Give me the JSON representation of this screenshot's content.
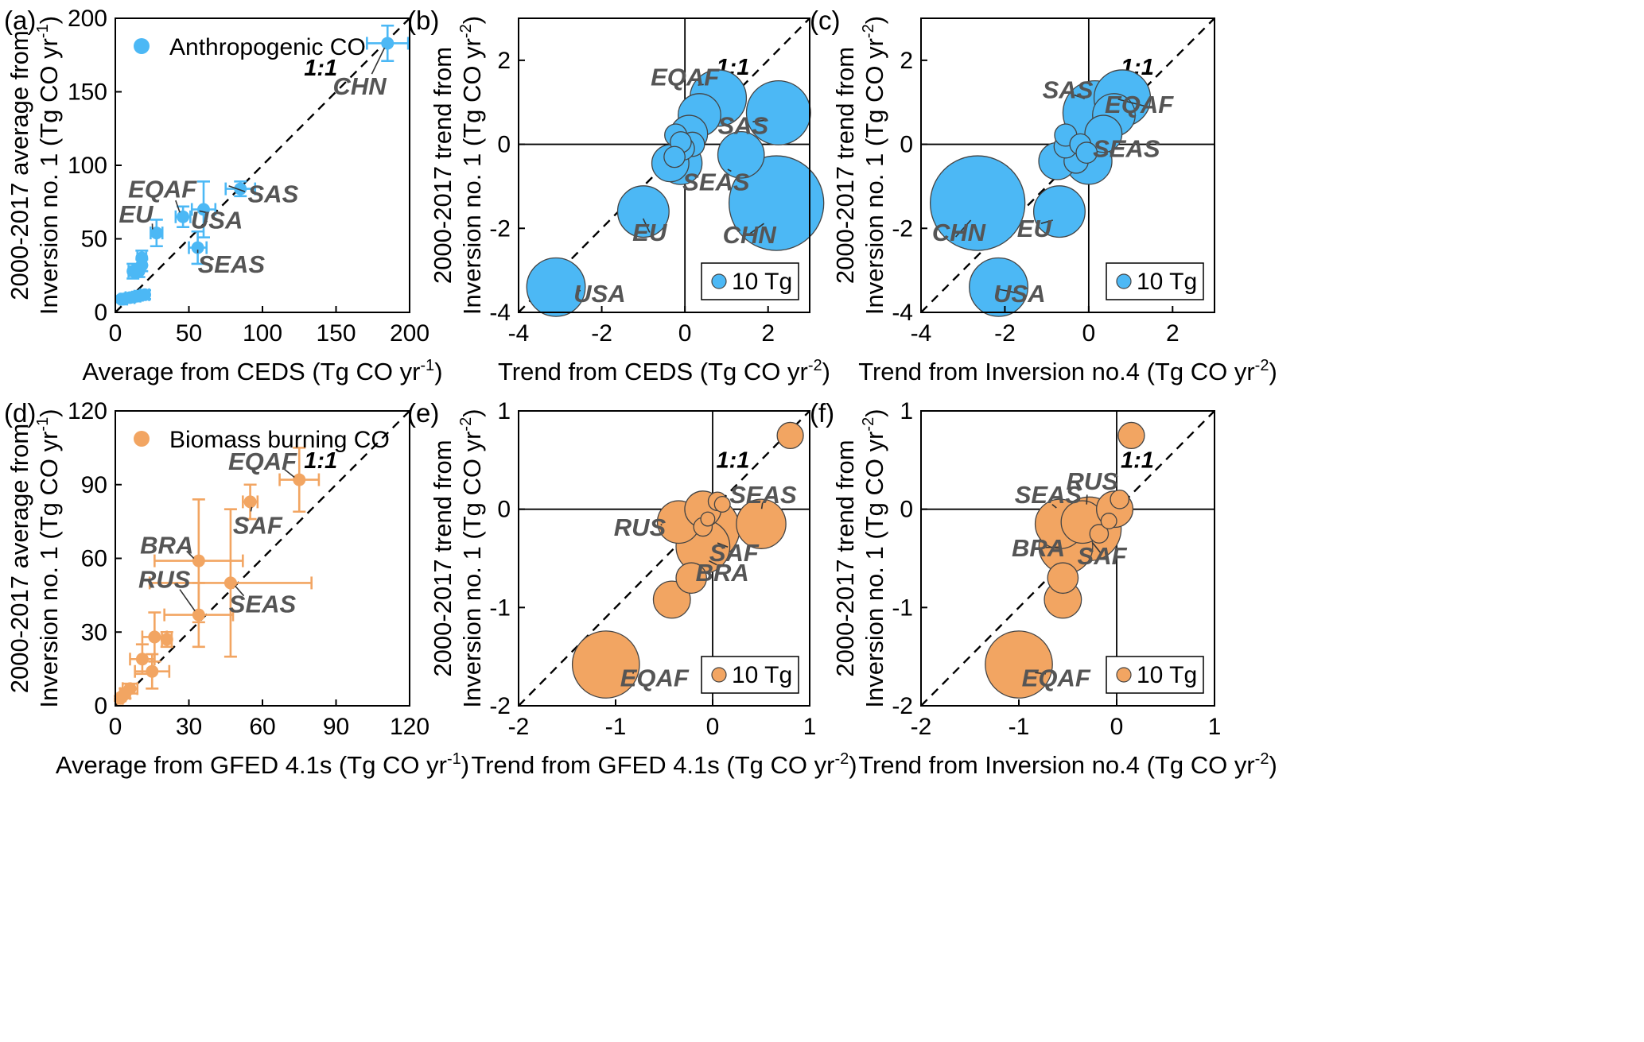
{
  "colors": {
    "anthropogenic": "#4cb8f5",
    "biomass": "#f2a562",
    "leader": "#333333",
    "label": "#555555"
  },
  "one_to_one_label": "1:1",
  "chart_data": [
    {
      "panel": "(a)",
      "type": "scatter",
      "xlabel": "Average from CEDS (Tg CO yr",
      "xlabel_sup": "-1",
      "xlabel_end": ")",
      "ylabel_line1": "2000-2017 average from",
      "ylabel_line2": "Inversion no. 1 (Tg CO yr",
      "ylabel_sup": "-1",
      "ylabel_end": ")",
      "xlim": [
        0,
        200
      ],
      "ylim": [
        0,
        200
      ],
      "xticks": [
        0,
        50,
        100,
        150,
        200
      ],
      "yticks": [
        0,
        50,
        100,
        150,
        200
      ],
      "legend": {
        "text": "Anthropogenic CO",
        "position": "top-left"
      },
      "color_key": "anthropogenic",
      "points": [
        {
          "x": 185,
          "y": 183,
          "xerr": 14,
          "yerr": 12,
          "label": "CHN"
        },
        {
          "x": 85,
          "y": 84,
          "xerr": 10,
          "yerr": 5,
          "label": "SAS"
        },
        {
          "x": 60,
          "y": 70,
          "xerr": 8,
          "yerr": 19,
          "label": "USA"
        },
        {
          "x": 46,
          "y": 65,
          "xerr": 5,
          "yerr": 7,
          "label": "EQAF"
        },
        {
          "x": 28,
          "y": 54,
          "xerr": 4,
          "yerr": 9,
          "label": "EU"
        },
        {
          "x": 56,
          "y": 44,
          "xerr": 6,
          "yerr": 11,
          "label": "SEAS"
        },
        {
          "x": 18,
          "y": 37,
          "xerr": 3,
          "yerr": 5
        },
        {
          "x": 18,
          "y": 32,
          "xerr": 2,
          "yerr": 4
        },
        {
          "x": 12,
          "y": 28,
          "xerr": 3,
          "yerr": 5
        },
        {
          "x": 16,
          "y": 28,
          "xerr": 2,
          "yerr": 4
        },
        {
          "x": 20,
          "y": 12,
          "xerr": 3,
          "yerr": 3
        },
        {
          "x": 15,
          "y": 11,
          "xerr": 2,
          "yerr": 3
        },
        {
          "x": 10,
          "y": 10,
          "xerr": 3,
          "yerr": 3
        },
        {
          "x": 6,
          "y": 9,
          "xerr": 2,
          "yerr": 2
        },
        {
          "x": 4,
          "y": 9,
          "xerr": 1,
          "yerr": 2
        }
      ],
      "labels": [
        {
          "text": "CHN",
          "x": 166,
          "y": 148,
          "anchor": "middle"
        },
        {
          "text": "SAS",
          "x": 90,
          "y": 75,
          "anchor": "start"
        },
        {
          "text": "USA",
          "x": 69,
          "y": 57,
          "anchor": "middle"
        },
        {
          "text": "EQAF",
          "x": 32,
          "y": 78,
          "anchor": "middle"
        },
        {
          "text": "EU",
          "x": 14,
          "y": 61,
          "anchor": "middle"
        },
        {
          "text": "SEAS",
          "x": 56,
          "y": 27,
          "anchor": "start"
        }
      ]
    },
    {
      "panel": "(b)",
      "type": "scatter",
      "xlabel": "Trend from CEDS (Tg CO yr",
      "xlabel_sup": "-2",
      "xlabel_end": ")",
      "ylabel_line1": "2000-2017 trend from",
      "ylabel_line2": "Inversion no. 1 (Tg CO yr",
      "ylabel_sup": "-2",
      "ylabel_end": ")",
      "xlim": [
        -4,
        3
      ],
      "ylim": [
        -4,
        3
      ],
      "xticks": [
        -4,
        -2,
        0,
        2
      ],
      "yticks": [
        -4,
        -2,
        0,
        2
      ],
      "legend": {
        "text": "10 Tg",
        "position": "bottom-right"
      },
      "color_key": "anthropogenic",
      "points": [
        {
          "x": 2.2,
          "y": -1.4,
          "size": 183,
          "label": "CHN"
        },
        {
          "x": 2.25,
          "y": 0.75,
          "size": 84,
          "label": "SAS"
        },
        {
          "x": -3.1,
          "y": -3.4,
          "size": 70,
          "label": "USA"
        },
        {
          "x": 0.8,
          "y": 1.1,
          "size": 65,
          "label": "EQAF"
        },
        {
          "x": -1.0,
          "y": -1.6,
          "size": 54,
          "label": "EU"
        },
        {
          "x": 1.35,
          "y": -0.25,
          "size": 44,
          "label": "SEAS"
        },
        {
          "x": 0.35,
          "y": 0.7,
          "size": 37
        },
        {
          "x": -0.1,
          "y": -0.45,
          "size": 37
        },
        {
          "x": 0.1,
          "y": 0.25,
          "size": 28
        },
        {
          "x": -0.35,
          "y": -0.45,
          "size": 28
        },
        {
          "x": 0.18,
          "y": 0.0,
          "size": 12
        },
        {
          "x": -0.22,
          "y": 0.22,
          "size": 10
        },
        {
          "x": -0.05,
          "y": -0.1,
          "size": 11
        },
        {
          "x": -0.1,
          "y": 0.05,
          "size": 9
        },
        {
          "x": -0.25,
          "y": -0.3,
          "size": 9
        }
      ],
      "labels": [
        {
          "text": "CHN",
          "x": 1.55,
          "y": -2.35,
          "anchor": "middle"
        },
        {
          "text": "SAS",
          "x": 1.4,
          "y": 0.25,
          "anchor": "middle"
        },
        {
          "text": "USA",
          "x": -2.05,
          "y": -3.75,
          "anchor": "middle"
        },
        {
          "text": "EQAF",
          "x": 0.0,
          "y": 1.4,
          "anchor": "middle"
        },
        {
          "text": "EU",
          "x": -0.85,
          "y": -2.3,
          "anchor": "middle"
        },
        {
          "text": "SEAS",
          "x": 0.75,
          "y": -1.1,
          "anchor": "middle"
        }
      ]
    },
    {
      "panel": "(c)",
      "type": "scatter",
      "xlabel": "Trend from Inversion no.4 (Tg CO yr",
      "xlabel_sup": "-2",
      "xlabel_end": ")",
      "ylabel_line1": "2000-2017 trend from",
      "ylabel_line2": "Inversion no. 1 (Tg CO yr",
      "ylabel_sup": "-2",
      "ylabel_end": ")",
      "xlim": [
        -4,
        3
      ],
      "ylim": [
        -4,
        3
      ],
      "xticks": [
        -4,
        -2,
        0,
        2
      ],
      "yticks": [
        -4,
        -2,
        0,
        2
      ],
      "legend": {
        "text": "10 Tg",
        "position": "bottom-right"
      },
      "color_key": "anthropogenic",
      "points": [
        {
          "x": -2.65,
          "y": -1.4,
          "size": 183,
          "label": "CHN"
        },
        {
          "x": 0.15,
          "y": 0.75,
          "size": 84,
          "label": "SAS"
        },
        {
          "x": -2.15,
          "y": -3.4,
          "size": 70,
          "label": "USA"
        },
        {
          "x": 0.8,
          "y": 1.1,
          "size": 65,
          "label": "EQAF"
        },
        {
          "x": -0.7,
          "y": -1.6,
          "size": 54,
          "label": "EU"
        },
        {
          "x": 0.0,
          "y": -0.4,
          "size": 44,
          "label": "SEAS"
        },
        {
          "x": 0.6,
          "y": 0.7,
          "size": 37
        },
        {
          "x": -0.75,
          "y": -0.4,
          "size": 28
        },
        {
          "x": 0.35,
          "y": 0.25,
          "size": 28
        },
        {
          "x": -0.3,
          "y": -0.4,
          "size": 12
        },
        {
          "x": -0.55,
          "y": 0.22,
          "size": 10
        },
        {
          "x": -0.55,
          "y": -0.05,
          "size": 11
        },
        {
          "x": -0.2,
          "y": 0.0,
          "size": 9
        },
        {
          "x": -0.05,
          "y": -0.2,
          "size": 9
        }
      ],
      "labels": [
        {
          "text": "CHN",
          "x": -3.1,
          "y": -2.3,
          "anchor": "middle"
        },
        {
          "text": "SAS",
          "x": -0.5,
          "y": 1.1,
          "anchor": "middle"
        },
        {
          "text": "USA",
          "x": -1.65,
          "y": -3.75,
          "anchor": "middle"
        },
        {
          "text": "EQAF",
          "x": 1.2,
          "y": 0.75,
          "anchor": "middle"
        },
        {
          "text": "EU",
          "x": -1.3,
          "y": -2.2,
          "anchor": "middle"
        },
        {
          "text": "SEAS",
          "x": 0.9,
          "y": -0.3,
          "anchor": "middle"
        }
      ]
    },
    {
      "panel": "(d)",
      "type": "scatter",
      "xlabel": "Average from GFED 4.1s (Tg CO yr",
      "xlabel_sup": "-1",
      "xlabel_end": ")",
      "ylabel_line1": "2000-2017 average from",
      "ylabel_line2": "Inversion no. 1 (Tg CO yr",
      "ylabel_sup": "-1",
      "ylabel_end": ")",
      "xlim": [
        0,
        120
      ],
      "ylim": [
        0,
        120
      ],
      "xticks": [
        0,
        30,
        60,
        90,
        120
      ],
      "yticks": [
        0,
        30,
        60,
        90,
        120
      ],
      "legend": {
        "text": "Biomass burning CO",
        "position": "top-left"
      },
      "color_key": "biomass",
      "points": [
        {
          "x": 75,
          "y": 92,
          "xerr": 8,
          "yerr": 13,
          "label": "EQAF"
        },
        {
          "x": 55,
          "y": 83,
          "xerr": 3,
          "yerr": 7,
          "label": "SAF"
        },
        {
          "x": 34,
          "y": 59,
          "xerr": 18,
          "yerr": 25,
          "label": "BRA"
        },
        {
          "x": 47,
          "y": 50,
          "xerr": 33,
          "yerr": 30,
          "label": "SEAS"
        },
        {
          "x": 34,
          "y": 37,
          "xerr": 14,
          "yerr": 13,
          "label": "RUS"
        },
        {
          "x": 16,
          "y": 28,
          "xerr": 5,
          "yerr": 10
        },
        {
          "x": 21,
          "y": 27,
          "xerr": 2,
          "yerr": 3
        },
        {
          "x": 11,
          "y": 19,
          "xerr": 5,
          "yerr": 6
        },
        {
          "x": 15,
          "y": 14,
          "xerr": 7,
          "yerr": 7
        },
        {
          "x": 6,
          "y": 7,
          "xerr": 3,
          "yerr": 2
        },
        {
          "x": 4,
          "y": 5,
          "xerr": 2,
          "yerr": 2
        },
        {
          "x": 3,
          "y": 4,
          "xerr": 1,
          "yerr": 1
        },
        {
          "x": 2,
          "y": 3,
          "xerr": 1,
          "yerr": 1
        }
      ],
      "labels": [
        {
          "text": "EQAF",
          "x": 60,
          "y": 96,
          "anchor": "middle"
        },
        {
          "text": "SAF",
          "x": 58,
          "y": 70,
          "anchor": "middle"
        },
        {
          "text": "BRA",
          "x": 21,
          "y": 62,
          "anchor": "middle"
        },
        {
          "text": "SEAS",
          "x": 60,
          "y": 38,
          "anchor": "middle"
        },
        {
          "text": "RUS",
          "x": 20,
          "y": 48,
          "anchor": "middle"
        }
      ]
    },
    {
      "panel": "(e)",
      "type": "scatter",
      "xlabel": "Trend from GFED 4.1s (Tg CO yr",
      "xlabel_sup": "-2",
      "xlabel_end": ")",
      "ylabel_line1": "2000-2017 trend from",
      "ylabel_line2": "Inversion no. 1 (Tg CO yr",
      "ylabel_sup": "-2",
      "ylabel_end": ")",
      "xlim": [
        -2,
        1
      ],
      "ylim": [
        -2,
        1
      ],
      "xticks": [
        -2,
        -1,
        0,
        1
      ],
      "yticks": [
        -2,
        -1,
        0,
        1
      ],
      "legend": {
        "text": "10 Tg",
        "position": "bottom-right"
      },
      "color_key": "biomass",
      "points": [
        {
          "x": -1.1,
          "y": -1.58,
          "size": 92,
          "label": "EQAF"
        },
        {
          "x": 0.5,
          "y": -0.15,
          "size": 50,
          "label": "SEAS"
        },
        {
          "x": -0.35,
          "y": -0.13,
          "size": 37,
          "label": "RUS"
        },
        {
          "x": -0.05,
          "y": -0.2,
          "size": 83,
          "label": "SAF"
        },
        {
          "x": -0.1,
          "y": -0.38,
          "size": 59,
          "label": "BRA"
        },
        {
          "x": -0.42,
          "y": -0.92,
          "size": 28
        },
        {
          "x": -0.22,
          "y": -0.7,
          "size": 19
        },
        {
          "x": -0.1,
          "y": 0.0,
          "size": 27
        },
        {
          "x": 0.8,
          "y": 0.75,
          "size": 14
        },
        {
          "x": 0.05,
          "y": 0.08,
          "size": 7
        },
        {
          "x": 0.1,
          "y": 0.05,
          "size": 5
        },
        {
          "x": -0.1,
          "y": -0.18,
          "size": 7
        },
        {
          "x": -0.05,
          "y": -0.1,
          "size": 4
        }
      ],
      "labels": [
        {
          "text": "EQAF",
          "x": -0.6,
          "y": -1.8,
          "anchor": "middle"
        },
        {
          "text": "SEAS",
          "x": 0.52,
          "y": 0.06,
          "anchor": "middle"
        },
        {
          "text": "RUS",
          "x": -0.75,
          "y": -0.27,
          "anchor": "middle"
        },
        {
          "text": "SAF",
          "x": 0.22,
          "y": -0.53,
          "anchor": "middle"
        },
        {
          "text": "BRA",
          "x": 0.1,
          "y": -0.73,
          "anchor": "middle"
        }
      ]
    },
    {
      "panel": "(f)",
      "type": "scatter",
      "xlabel": "Trend from Inversion no.4 (Tg CO yr",
      "xlabel_sup": "-2",
      "xlabel_end": ")",
      "ylabel_line1": "2000-2017 trend from",
      "ylabel_line2": "Inversion no. 1 (Tg CO yr",
      "ylabel_sup": "-2",
      "ylabel_end": ")",
      "xlim": [
        -2,
        1
      ],
      "ylim": [
        -2,
        1
      ],
      "xticks": [
        -2,
        -1,
        0,
        1
      ],
      "yticks": [
        -2,
        -1,
        0,
        1
      ],
      "legend": {
        "text": "10 Tg",
        "position": "bottom-right"
      },
      "color_key": "biomass",
      "points": [
        {
          "x": -1.0,
          "y": -1.58,
          "size": 92,
          "label": "EQAF"
        },
        {
          "x": -0.58,
          "y": -0.15,
          "size": 50,
          "label": "SEAS"
        },
        {
          "x": -0.35,
          "y": -0.13,
          "size": 37,
          "label": "RUS"
        },
        {
          "x": -0.28,
          "y": -0.2,
          "size": 83,
          "label": "SAF"
        },
        {
          "x": -0.52,
          "y": -0.38,
          "size": 59,
          "label": "BRA"
        },
        {
          "x": -0.55,
          "y": -0.92,
          "size": 28
        },
        {
          "x": -0.55,
          "y": -0.7,
          "size": 19
        },
        {
          "x": -0.02,
          "y": 0.0,
          "size": 27
        },
        {
          "x": 0.15,
          "y": 0.75,
          "size": 14
        },
        {
          "x": 0.03,
          "y": 0.1,
          "size": 7
        },
        {
          "x": -0.18,
          "y": -0.25,
          "size": 7
        },
        {
          "x": -0.08,
          "y": -0.12,
          "size": 5
        }
      ],
      "labels": [
        {
          "text": "EQAF",
          "x": -0.62,
          "y": -1.8,
          "anchor": "middle"
        },
        {
          "text": "SEAS",
          "x": -0.7,
          "y": 0.06,
          "anchor": "middle"
        },
        {
          "text": "RUS",
          "x": -0.25,
          "y": 0.2,
          "anchor": "middle"
        },
        {
          "text": "SAF",
          "x": -0.15,
          "y": -0.56,
          "anchor": "middle"
        },
        {
          "text": "BRA",
          "x": -0.8,
          "y": -0.48,
          "anchor": "middle"
        }
      ]
    }
  ]
}
